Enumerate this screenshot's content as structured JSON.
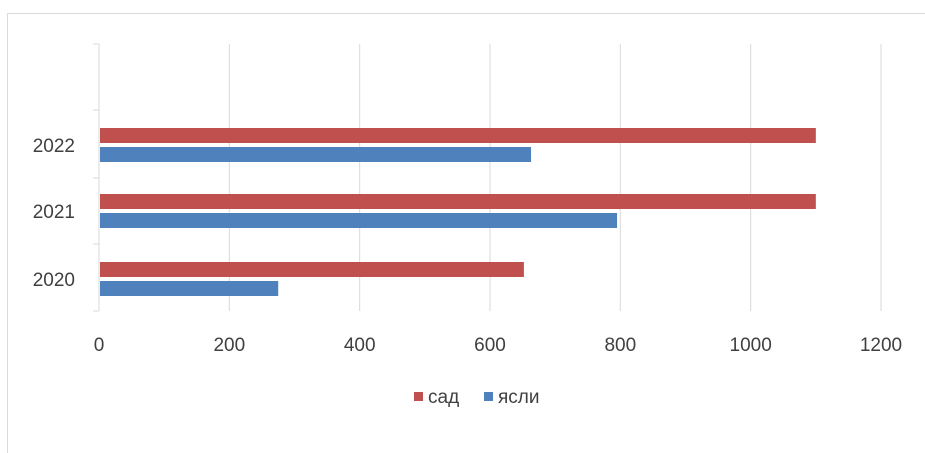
{
  "chart_data": {
    "type": "bar",
    "orientation": "horizontal",
    "categories": [
      "2020",
      "2021",
      "2022"
    ],
    "series": [
      {
        "name": "сад",
        "color": "#c0504d",
        "values": [
          652,
          1100,
          1100
        ]
      },
      {
        "name": "ясли",
        "color": "#4f81bd",
        "values": [
          275,
          795,
          663
        ]
      }
    ],
    "x_ticks": [
      "0",
      "200",
      "400",
      "600",
      "800",
      "1000",
      "1200"
    ],
    "xlim": [
      0,
      1200
    ],
    "grid": "vertical",
    "legend_position": "bottom",
    "title": "",
    "xlabel": "",
    "ylabel": ""
  }
}
